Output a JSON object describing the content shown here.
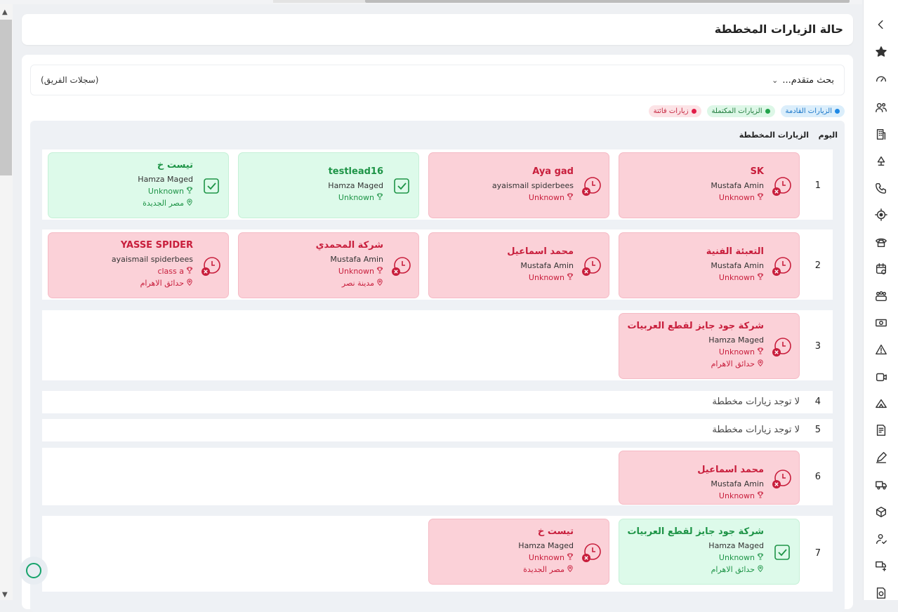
{
  "header": {
    "title": "حالة الزيارات المخططة"
  },
  "search": {
    "advanced_label": "بحث متقدم...",
    "team_label": "(سجلات الفريق)"
  },
  "legend": {
    "upcoming": "الزيارات القادمة",
    "completed": "الزيارات المكتملة",
    "missed": "زيارات فائتة"
  },
  "table": {
    "col_day": "اليوم",
    "col_visits": "الزيارات المخططة",
    "empty_text": "لا توجد زيارات مخططة"
  },
  "rows": [
    {
      "day": "1",
      "cards": [
        {
          "status": "missed",
          "name": "SK",
          "owner": "Mustafa Amin",
          "stage": "Unknown"
        },
        {
          "status": "missed",
          "name": "Aya gad",
          "owner": "ayaismail spiderbees",
          "stage": "Unknown"
        },
        {
          "status": "completed",
          "name": "testlead16",
          "owner": "Hamza Maged",
          "stage": "Unknown"
        },
        {
          "status": "completed",
          "name": "تيست خ",
          "owner": "Hamza Maged",
          "stage": "Unknown",
          "location": "مصر الجديدة"
        }
      ]
    },
    {
      "day": "2",
      "cards": [
        {
          "status": "missed",
          "name": "التعبئة الفنية",
          "owner": "Mustafa Amin",
          "stage": "Unknown"
        },
        {
          "status": "missed",
          "name": "محمد اسماعيل",
          "owner": "Mustafa Amin",
          "stage": "Unknown"
        },
        {
          "status": "missed",
          "name": "شركة المحمدي",
          "owner": "Mustafa Amin",
          "stage": "Unknown",
          "location": "مدينة نصر"
        },
        {
          "status": "missed",
          "name": "YASSE SPIDER",
          "owner": "ayaismail spiderbees",
          "stage": "class a",
          "location": "حدائق الاهرام"
        }
      ]
    },
    {
      "day": "3",
      "cards": [
        {
          "status": "missed",
          "name": "شركة جود جايز لقطع العربيات",
          "owner": "Hamza Maged",
          "stage": "Unknown",
          "location": "حدائق الاهرام"
        }
      ]
    },
    {
      "day": "4",
      "cards": []
    },
    {
      "day": "5",
      "cards": []
    },
    {
      "day": "6",
      "cards": [
        {
          "status": "missed",
          "name": "محمد اسماعيل",
          "owner": "Mustafa Amin",
          "stage": "Unknown"
        }
      ]
    },
    {
      "day": "7",
      "cards": [
        {
          "status": "completed",
          "name": "شركة جود جايز لقطع العربيات",
          "owner": "Hamza Maged",
          "stage": "Unknown",
          "location": "حدائق الاهرام"
        },
        {
          "status": "missed",
          "name": "تيست خ",
          "owner": "Hamza Maged",
          "stage": "Unknown",
          "location": "مصر الجديدة"
        }
      ]
    }
  ],
  "sidebar_icons": [
    "chevron-left-icon",
    "star-icon",
    "dashboard-icon",
    "users-icon",
    "building-icon",
    "lamp-icon",
    "phone-icon",
    "target-icon",
    "landline-icon",
    "calendar-icon",
    "team-icon",
    "money-icon",
    "warning-icon",
    "camera-icon",
    "tent-icon",
    "invoice-icon",
    "pen-icon",
    "truck-icon",
    "box-icon",
    "user-check-icon",
    "truck-plus-icon",
    "file-money-icon"
  ],
  "colors": {
    "missed_bg": "#fbd1d8",
    "missed_text": "#c81e3c",
    "completed_bg": "#ddfaea",
    "completed_text": "#1e9447",
    "upcoming": "#1e88e5"
  }
}
